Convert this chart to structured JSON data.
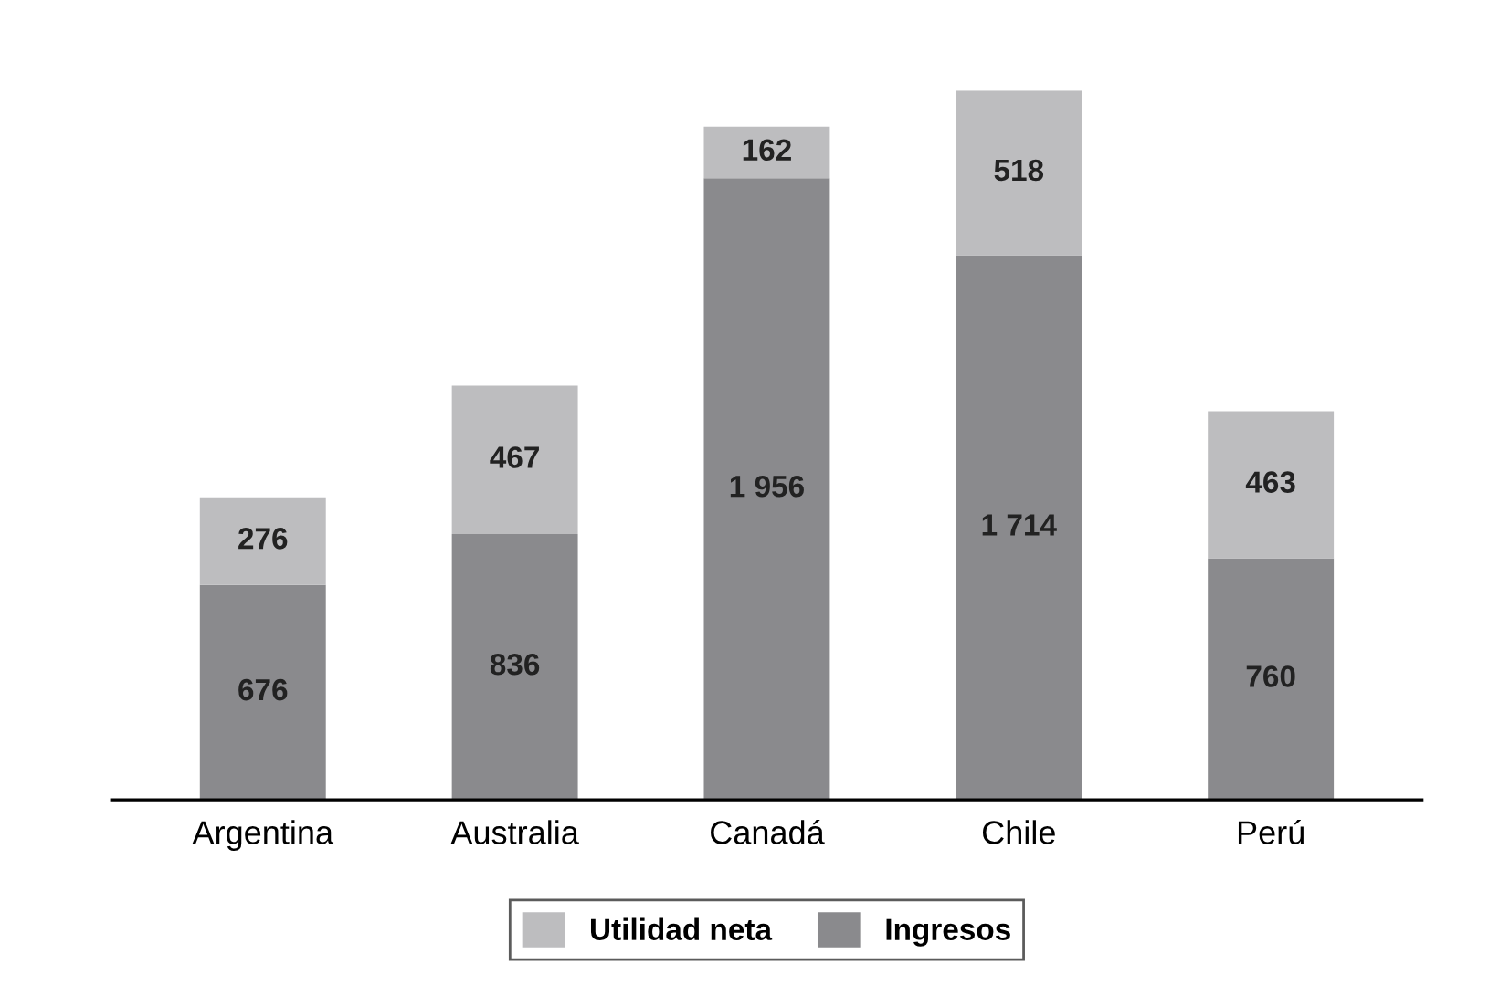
{
  "chart_data": {
    "type": "bar",
    "stacked": true,
    "categories": [
      "Argentina",
      "Australia",
      "Canadá",
      "Chile",
      "Perú"
    ],
    "series": [
      {
        "name": "Ingresos",
        "color": "#8a8a8d",
        "values": [
          676,
          836,
          1956,
          1714,
          760
        ],
        "value_labels": [
          "676",
          "836",
          "1 956",
          "1 714",
          "760"
        ]
      },
      {
        "name": "Utilidad neta",
        "color": "#bdbdbf",
        "values": [
          276,
          467,
          162,
          518,
          463
        ],
        "value_labels": [
          "276",
          "467",
          "162",
          "518",
          "463"
        ]
      }
    ],
    "legend": "bottom",
    "grid": false
  }
}
